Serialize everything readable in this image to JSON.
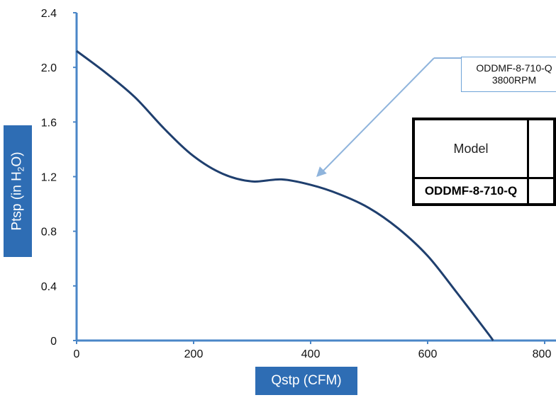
{
  "chart_data": {
    "type": "line",
    "xlabel": "Qstp (CFM)",
    "ylabel": "Ptsp (in H2O)",
    "xlim": [
      0,
      800
    ],
    "ylim": [
      0,
      2.4
    ],
    "x_ticks": [
      "0",
      "200",
      "400",
      "600",
      "800"
    ],
    "y_ticks": [
      "0",
      "0.4",
      "0.8",
      "1.2",
      "1.6",
      "2.0",
      "2.4"
    ],
    "grid": false,
    "series": [
      {
        "name": "ODDMF-8-710-Q 3800RPM",
        "color": "#1f3f6e",
        "x": [
          0,
          50,
          100,
          150,
          200,
          250,
          300,
          350,
          400,
          450,
          500,
          550,
          600,
          650,
          700,
          712
        ],
        "y": [
          2.12,
          1.96,
          1.78,
          1.55,
          1.35,
          1.22,
          1.165,
          1.18,
          1.14,
          1.07,
          0.97,
          0.82,
          0.62,
          0.35,
          0.07,
          0.0
        ]
      }
    ],
    "annotation": {
      "line1": "ODDMF-8-710-Q",
      "line2": "3800RPM"
    }
  },
  "labels": {
    "ylabel_main": "Ptsp (in H",
    "ylabel_sub": "2",
    "ylabel_end": "O)",
    "xlabel": "Qstp (CFM)"
  },
  "table": {
    "header": "Model",
    "model": "ODDMF-8-710-Q"
  },
  "colors": {
    "axis": "#4a86c7",
    "curve": "#1f3f6e",
    "arrow": "#8fb4dc",
    "label_bg": "#2e6db4"
  }
}
